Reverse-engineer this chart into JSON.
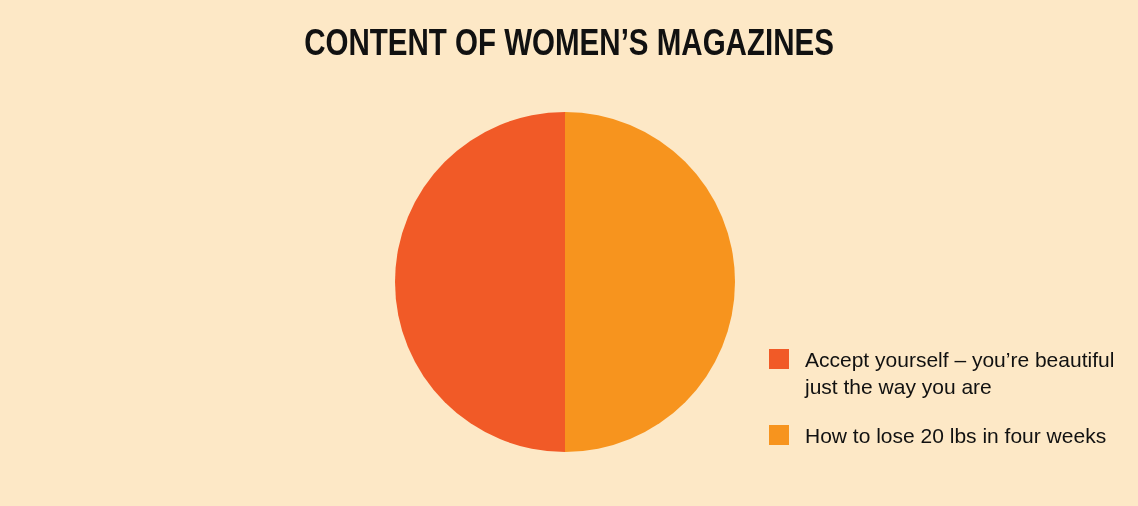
{
  "chart_data": {
    "type": "pie",
    "title": "CONTENT OF WOMEN’S MAGAZINES",
    "categories": [
      "Accept yourself – you’re beautiful just the way you are",
      "How to lose 20 lbs in four weeks"
    ],
    "values": [
      50,
      50
    ],
    "colors": [
      "#f15a27",
      "#f7941e"
    ],
    "legend": "bottom right"
  }
}
